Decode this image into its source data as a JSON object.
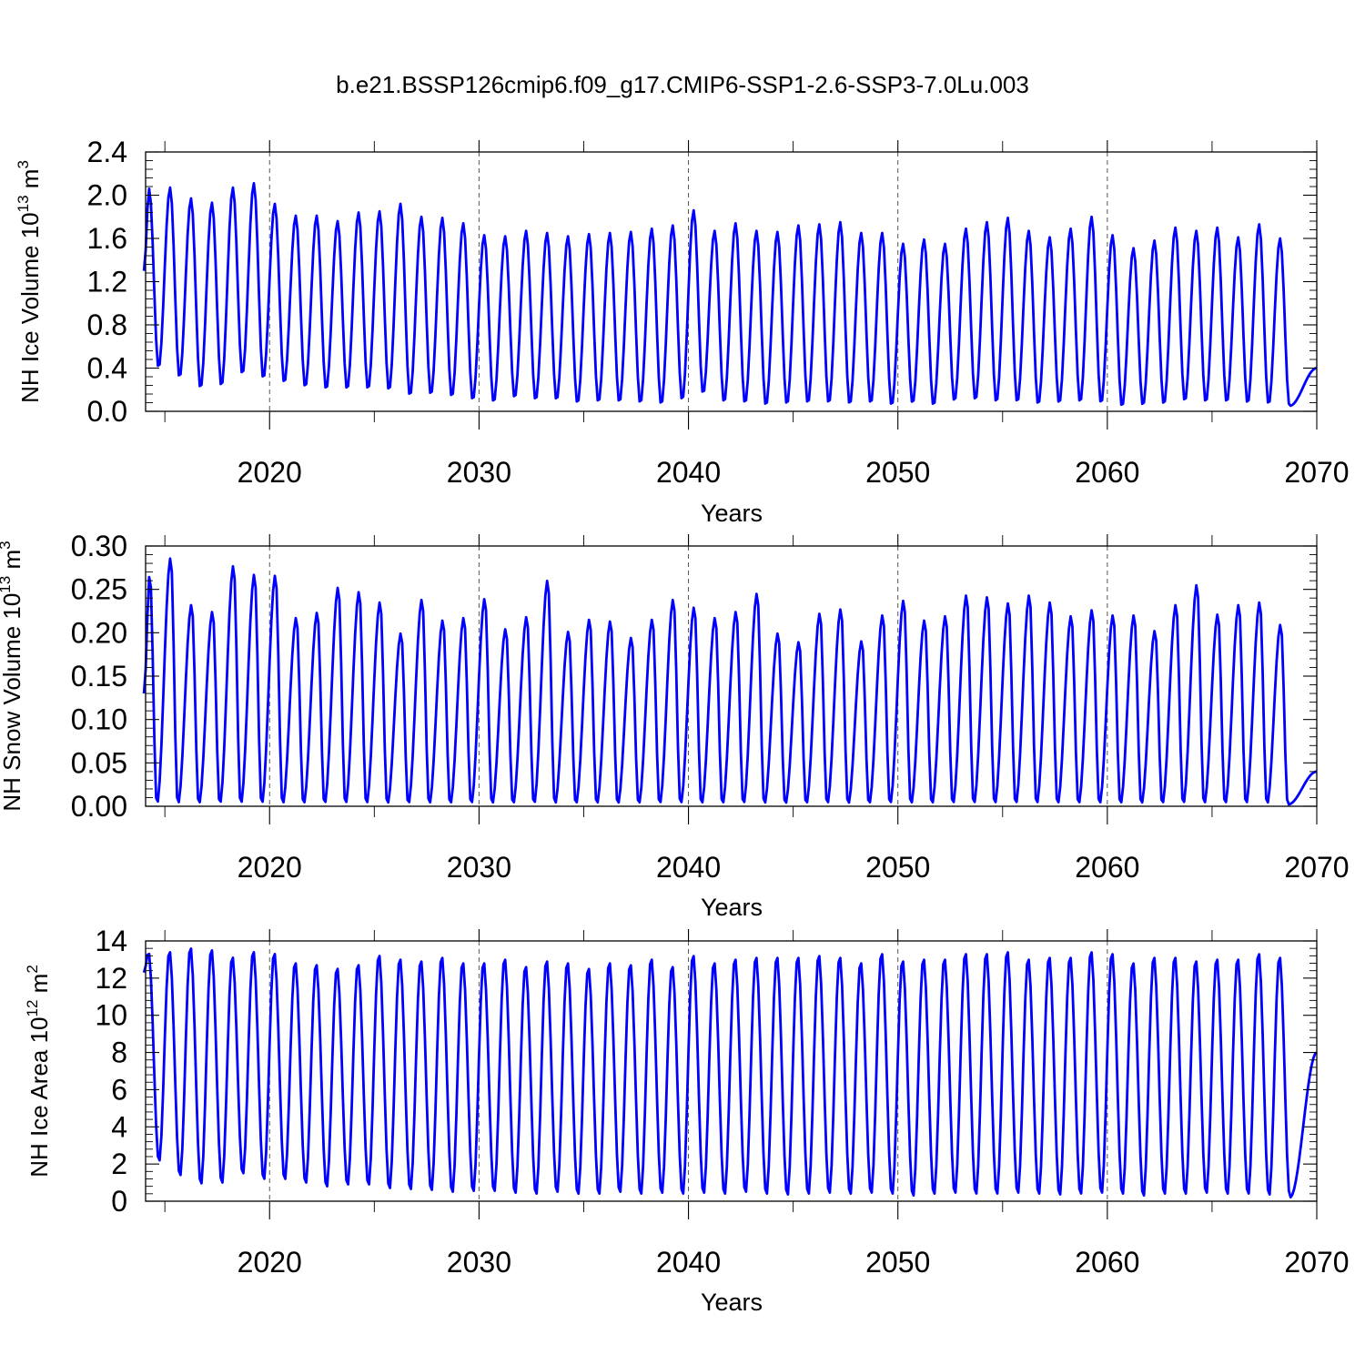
{
  "title": "b.e21.BSSP126cmip6.f09_g17.CMIP6-SSP1-2.6-SSP3-7.0Lu.003",
  "chart_data": [
    {
      "type": "line",
      "name": "ice-volume",
      "ylabel": {
        "main": "NH Ice Volume 10",
        "sup": "13",
        "unit": " m",
        "unit_sup": "3"
      },
      "xlabel": "Years",
      "xlim": [
        2014.08,
        2070.0
      ],
      "ylim": [
        0,
        2.4
      ],
      "xticks": [
        2020,
        2030,
        2040,
        2050,
        2060,
        2070
      ],
      "xtick_labels": [
        "2020",
        "2030",
        "2040",
        "2050",
        "2060",
        "2070"
      ],
      "yticks": [
        0,
        0.4,
        0.8,
        1.2,
        1.6,
        2.0,
        2.4
      ],
      "ytick_labels": [
        "0.0",
        "0.4",
        "0.8",
        "1.2",
        "1.6",
        "2.0",
        "2.4"
      ],
      "x_start": 2014.0,
      "start_value": 1.3,
      "end_value": 0.4,
      "maxima": [
        2.06,
        2.07,
        1.97,
        1.93,
        2.07,
        2.11,
        1.92,
        1.81,
        1.81,
        1.76,
        1.84,
        1.85,
        1.92,
        1.8,
        1.79,
        1.74,
        1.63,
        1.62,
        1.67,
        1.65,
        1.62,
        1.64,
        1.65,
        1.66,
        1.69,
        1.72,
        1.86,
        1.67,
        1.74,
        1.67,
        1.66,
        1.72,
        1.73,
        1.75,
        1.65,
        1.65,
        1.55,
        1.59,
        1.55,
        1.69,
        1.75,
        1.79,
        1.67,
        1.61,
        1.69,
        1.8,
        1.63,
        1.51,
        1.58,
        1.7,
        1.67,
        1.7,
        1.61,
        1.73,
        1.6
      ],
      "minima": [
        0.4,
        0.31,
        0.21,
        0.23,
        0.34,
        0.3,
        0.26,
        0.22,
        0.2,
        0.2,
        0.2,
        0.19,
        0.14,
        0.15,
        0.13,
        0.1,
        0.08,
        0.12,
        0.1,
        0.1,
        0.07,
        0.08,
        0.08,
        0.07,
        0.06,
        0.1,
        0.16,
        0.08,
        0.07,
        0.05,
        0.06,
        0.07,
        0.07,
        0.06,
        0.07,
        0.05,
        0.07,
        0.05,
        0.09,
        0.1,
        0.08,
        0.08,
        0.06,
        0.07,
        0.08,
        0.07,
        0.04,
        0.05,
        0.06,
        0.09,
        0.08,
        0.08,
        0.07,
        0.06,
        0.05
      ]
    },
    {
      "type": "line",
      "name": "snow-volume",
      "ylabel": {
        "main": "NH Snow Volume 10",
        "sup": "13",
        "unit": " m",
        "unit_sup": "3"
      },
      "xlabel": "Years",
      "xlim": [
        2014.08,
        2070.0
      ],
      "ylim": [
        0,
        0.3
      ],
      "xticks": [
        2020,
        2030,
        2040,
        2050,
        2060,
        2070
      ],
      "xtick_labels": [
        "2020",
        "2030",
        "2040",
        "2050",
        "2060",
        "2070"
      ],
      "yticks": [
        0,
        0.05,
        0.1,
        0.15,
        0.2,
        0.25,
        0.3
      ],
      "ytick_labels": [
        "0.00",
        "0.05",
        "0.10",
        "0.15",
        "0.20",
        "0.25",
        "0.30"
      ],
      "x_start": 2014.0,
      "start_value": 0.13,
      "end_value": 0.04,
      "maxima": [
        0.268,
        0.287,
        0.233,
        0.225,
        0.278,
        0.268,
        0.267,
        0.218,
        0.224,
        0.253,
        0.248,
        0.236,
        0.2,
        0.239,
        0.215,
        0.218,
        0.24,
        0.205,
        0.219,
        0.261,
        0.202,
        0.216,
        0.214,
        0.195,
        0.216,
        0.239,
        0.23,
        0.218,
        0.225,
        0.246,
        0.2,
        0.19,
        0.223,
        0.228,
        0.191,
        0.221,
        0.238,
        0.215,
        0.22,
        0.244,
        0.242,
        0.235,
        0.244,
        0.236,
        0.22,
        0.227,
        0.221,
        0.221,
        0.203,
        0.233,
        0.256,
        0.222,
        0.233,
        0.236,
        0.21
      ],
      "minima": [
        0.002,
        0.002,
        0.002,
        0.002,
        0.002,
        0.002,
        0.002,
        0.002,
        0.002,
        0.002,
        0.002,
        0.002,
        0.002,
        0.002,
        0.002,
        0.002,
        0.002,
        0.002,
        0.002,
        0.002,
        0.002,
        0.002,
        0.002,
        0.002,
        0.002,
        0.002,
        0.002,
        0.002,
        0.002,
        0.002,
        0.002,
        0.002,
        0.002,
        0.002,
        0.002,
        0.002,
        0.002,
        0.002,
        0.002,
        0.002,
        0.002,
        0.002,
        0.002,
        0.002,
        0.002,
        0.002,
        0.002,
        0.002,
        0.002,
        0.002,
        0.002,
        0.002,
        0.002,
        0.002,
        0.002
      ]
    },
    {
      "type": "line",
      "name": "ice-area",
      "ylabel": {
        "main": "NH Ice Area 10",
        "sup": "12",
        "unit": " m",
        "unit_sup": "2"
      },
      "xlabel": "Years",
      "xlim": [
        2014.08,
        2070.0
      ],
      "ylim": [
        0,
        14
      ],
      "xticks": [
        2020,
        2030,
        2040,
        2050,
        2060,
        2070
      ],
      "xtick_labels": [
        "2020",
        "2030",
        "2040",
        "2050",
        "2060",
        "2070"
      ],
      "yticks": [
        0,
        2,
        4,
        6,
        8,
        10,
        12,
        14
      ],
      "ytick_labels": [
        "0",
        "2",
        "4",
        "6",
        "8",
        "10",
        "12",
        "14"
      ],
      "x_start": 2014.0,
      "start_value": 12.3,
      "end_value": 8.0,
      "maxima": [
        13.4,
        13.5,
        13.7,
        13.6,
        13.2,
        13.5,
        13.4,
        12.9,
        12.8,
        12.6,
        12.8,
        13.3,
        13.1,
        13.0,
        13.2,
        12.9,
        12.9,
        13.1,
        12.7,
        13.0,
        12.9,
        12.6,
        12.9,
        12.8,
        13.1,
        12.7,
        13.3,
        12.9,
        13.1,
        13.2,
        13.2,
        13.2,
        13.3,
        13.2,
        12.9,
        13.4,
        13.0,
        13.1,
        13.1,
        13.4,
        13.4,
        13.5,
        13.1,
        13.2,
        13.2,
        13.5,
        13.4,
        12.9,
        13.2,
        13.2,
        13.0,
        13.1,
        13.1,
        13.4,
        13.2
      ],
      "minima": [
        2.1,
        1.3,
        0.85,
        0.9,
        1.4,
        1.1,
        1.1,
        0.9,
        0.7,
        0.8,
        0.8,
        0.6,
        0.55,
        0.5,
        0.4,
        0.45,
        0.45,
        0.35,
        0.3,
        0.4,
        0.3,
        0.3,
        0.4,
        0.3,
        0.35,
        0.3,
        0.35,
        0.3,
        0.4,
        0.3,
        0.25,
        0.3,
        0.35,
        0.3,
        0.35,
        0.3,
        0.2,
        0.3,
        0.35,
        0.3,
        0.3,
        0.35,
        0.3,
        0.25,
        0.3,
        0.35,
        0.3,
        0.2,
        0.3,
        0.3,
        0.35,
        0.3,
        0.3,
        0.25,
        0.2
      ]
    }
  ]
}
